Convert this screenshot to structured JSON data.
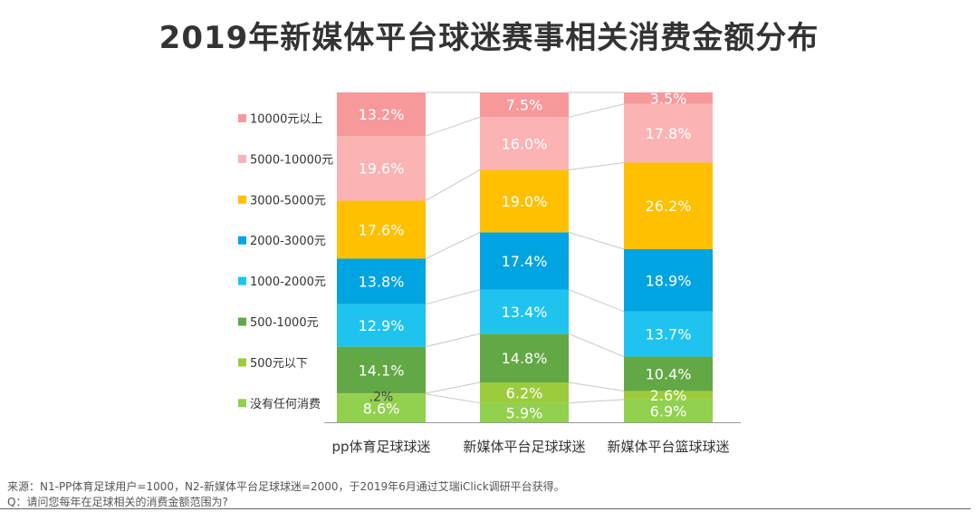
{
  "title": "2019年新媒体平台球迷赛事相关消费金额分布",
  "footer": {
    "source": "来源：N1-PP体育足球用户=1000，N2-新媒体平台足球球迷=2000，于2019年6月通过艾瑞iClick调研平台获得。",
    "question": "Q：请问您每年在足球相关的消费金额范围为?"
  },
  "chart_data": {
    "type": "bar",
    "stacked": true,
    "unit": "%",
    "title": "2019年新媒体平台球迷赛事相关消费金额分布",
    "categories": [
      "pp体育足球球迷",
      "新媒体平台足球球迷",
      "新媒体平台篮球球迷"
    ],
    "legend_position": "left",
    "series": [
      {
        "name": "没有任何消费",
        "color": "#92d050",
        "values": [
          8.6,
          5.9,
          6.9
        ],
        "labels": [
          "8.6%",
          "5.9%",
          "6.9%"
        ]
      },
      {
        "name": "500元以下",
        "color": "#9ccc3c",
        "values": [
          0.2,
          6.2,
          2.6
        ],
        "labels": [
          ".2%",
          "6.2%",
          "2.6%"
        ]
      },
      {
        "name": "500-1000元",
        "color": "#62a844",
        "values": [
          14.1,
          14.8,
          10.4
        ],
        "labels": [
          "14.1%",
          "14.8%",
          "10.4%"
        ]
      },
      {
        "name": "1000-2000元",
        "color": "#1fc4ee",
        "values": [
          12.9,
          13.4,
          13.7
        ],
        "labels": [
          "12.9%",
          "13.4%",
          "13.7%"
        ]
      },
      {
        "name": "2000-3000元",
        "color": "#00a4e1",
        "values": [
          13.8,
          17.4,
          18.9
        ],
        "labels": [
          "13.8%",
          "17.4%",
          "18.9%"
        ]
      },
      {
        "name": "3000-5000元",
        "color": "#ffc000",
        "values": [
          17.6,
          19.0,
          26.2
        ],
        "labels": [
          "17.6%",
          "19.0%",
          "26.2%"
        ]
      },
      {
        "name": "5000-10000元",
        "color": "#fbb3b3",
        "values": [
          19.6,
          16.0,
          17.8
        ],
        "labels": [
          "19.6%",
          "16.0%",
          "17.8%"
        ]
      },
      {
        "name": "10000元以上",
        "color": "#f7999b",
        "values": [
          13.2,
          7.5,
          3.5
        ],
        "labels": [
          "13.2%",
          "7.5%",
          "3.5%"
        ]
      }
    ]
  }
}
